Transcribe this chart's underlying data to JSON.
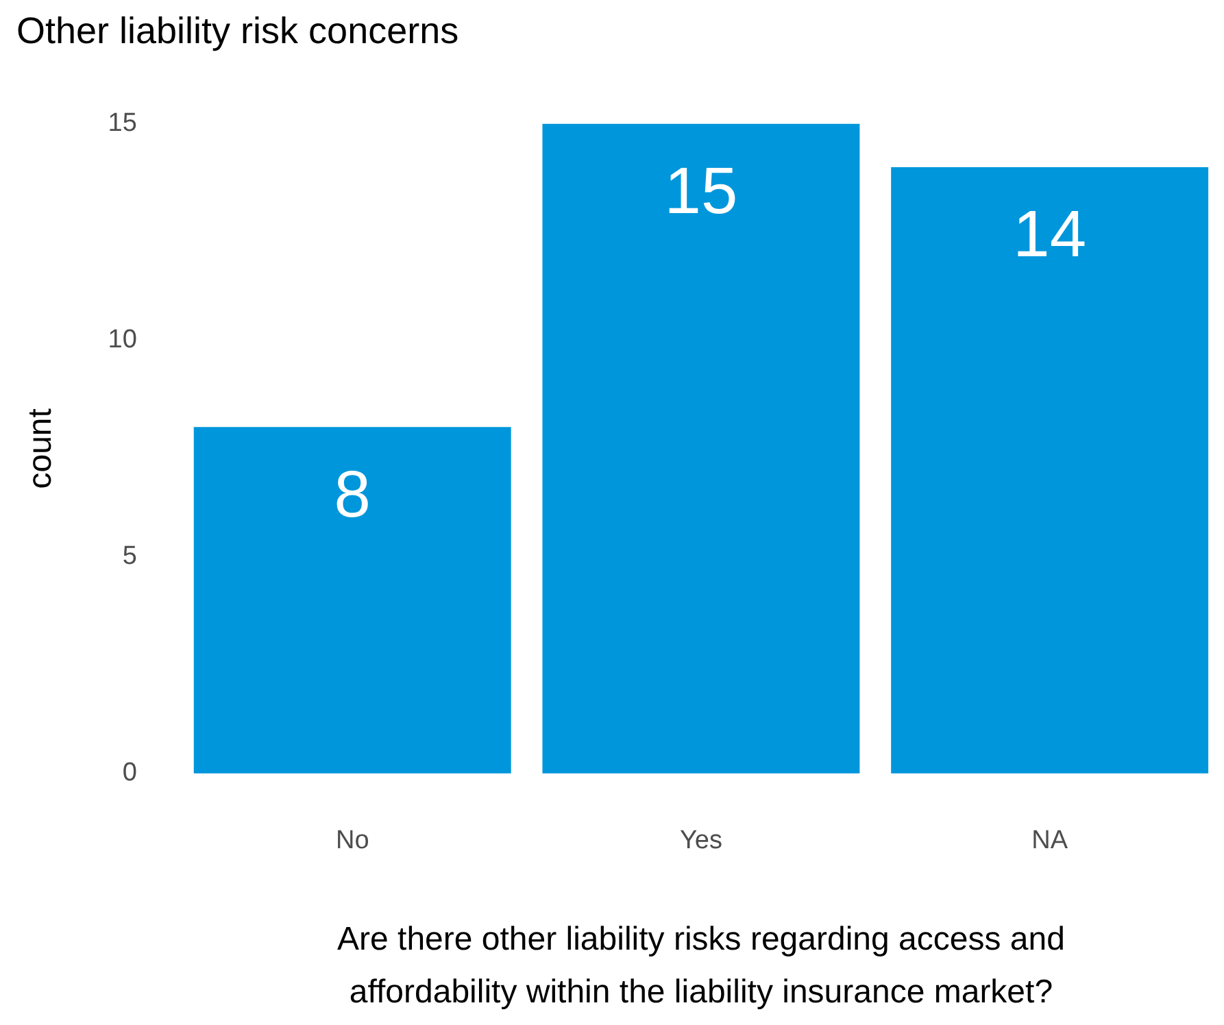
{
  "chart_data": {
    "type": "bar",
    "title": "Other liability risk concerns",
    "xlabel": "Are there other liability risks regarding access and affordability within the liability insurance market?",
    "ylabel": "count",
    "categories": [
      "No",
      "Yes",
      "NA"
    ],
    "values": [
      8,
      15,
      14
    ],
    "color": "#0096db",
    "ylim": [
      0,
      15
    ],
    "yticks": [
      0,
      5,
      10,
      15
    ],
    "data_labels": true,
    "grid": false,
    "legend": false
  }
}
